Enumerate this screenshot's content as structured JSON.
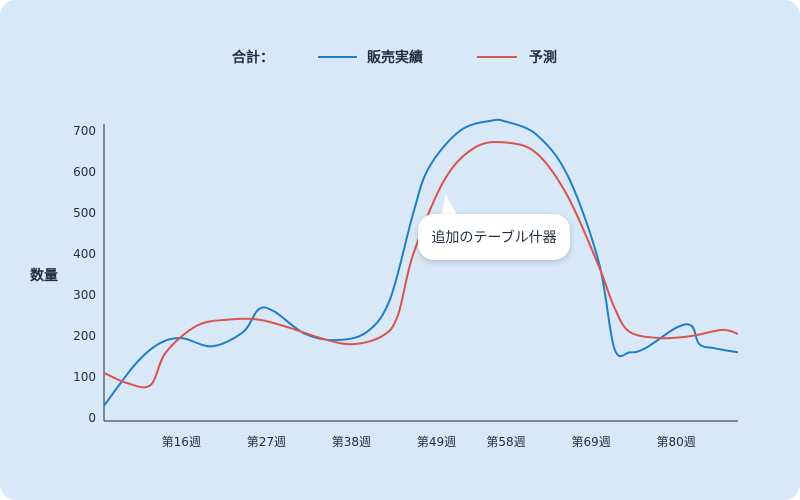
{
  "legend": {
    "title": "合計：",
    "items": [
      {
        "label": "販売実績",
        "color": "#1f7fc4"
      },
      {
        "label": "予測",
        "color": "#d9534f"
      }
    ]
  },
  "tooltip": {
    "text": "追加のテーブル什器"
  },
  "chart_data": {
    "type": "line",
    "ylabel": "数量",
    "xlabel": "",
    "ylim": [
      0,
      700
    ],
    "yticks": [
      0,
      100,
      200,
      300,
      400,
      500,
      600,
      700
    ],
    "xlim": [
      6,
      88
    ],
    "xticks": [
      {
        "label": "第16週",
        "value": 16
      },
      {
        "label": "第27週",
        "value": 27
      },
      {
        "label": "第38週",
        "value": 38
      },
      {
        "label": "第49週",
        "value": 49
      },
      {
        "label": "第58週",
        "value": 58
      },
      {
        "label": "第69週",
        "value": 69
      },
      {
        "label": "第80週",
        "value": 80
      }
    ],
    "grid": false,
    "legend_position": "top-center",
    "series": [
      {
        "name": "販売実績",
        "color": "#1f7fc4",
        "x": [
          6,
          10,
          13,
          16,
          20,
          24,
          26,
          28,
          32,
          36,
          40,
          43,
          46,
          48,
          52,
          56,
          58,
          62,
          66,
          70,
          72,
          74,
          76,
          80,
          82,
          83,
          85,
          88
        ],
        "y": [
          30,
          130,
          180,
          195,
          175,
          210,
          265,
          260,
          205,
          190,
          210,
          290,
          500,
          610,
          700,
          725,
          723,
          690,
          590,
          380,
          170,
          160,
          170,
          220,
          225,
          180,
          170,
          160
        ]
      },
      {
        "name": "予測",
        "color": "#d9534f",
        "x": [
          6,
          9,
          12,
          14,
          18,
          22,
          26,
          30,
          34,
          38,
          42,
          44,
          46,
          50,
          54,
          58,
          62,
          66,
          70,
          72,
          74,
          78,
          82,
          86,
          88
        ],
        "y": [
          110,
          85,
          80,
          160,
          225,
          240,
          240,
          220,
          195,
          180,
          200,
          250,
          400,
          580,
          660,
          672,
          645,
          540,
          370,
          270,
          210,
          195,
          200,
          215,
          205
        ]
      }
    ]
  }
}
